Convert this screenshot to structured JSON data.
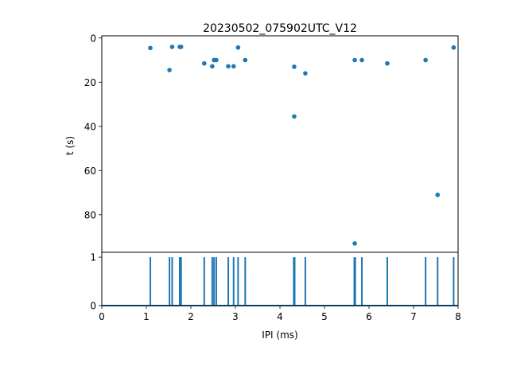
{
  "chart_data": [
    {
      "type": "scatter",
      "title": "20230502_075902UTC_V12",
      "xlabel": "",
      "ylabel": "t (s)",
      "xlim": [
        0,
        8
      ],
      "ylim": [
        97,
        -1
      ],
      "y_inverted": true,
      "y_ticks": [
        0,
        20,
        40,
        60,
        80
      ],
      "y_tick_labels": [
        "0",
        "20",
        "40",
        "60",
        "80"
      ],
      "marker_color": "#1f77b4",
      "points": [
        {
          "x": 1.09,
          "y": 4.5
        },
        {
          "x": 1.52,
          "y": 14.5
        },
        {
          "x": 1.58,
          "y": 4.0
        },
        {
          "x": 1.75,
          "y": 4.0
        },
        {
          "x": 1.78,
          "y": 4.0
        },
        {
          "x": 2.3,
          "y": 11.5
        },
        {
          "x": 2.48,
          "y": 12.8
        },
        {
          "x": 2.52,
          "y": 10.0
        },
        {
          "x": 2.57,
          "y": 10.0
        },
        {
          "x": 2.84,
          "y": 12.8
        },
        {
          "x": 2.96,
          "y": 12.8
        },
        {
          "x": 3.06,
          "y": 4.3
        },
        {
          "x": 3.22,
          "y": 10.0
        },
        {
          "x": 4.32,
          "y": 13.0
        },
        {
          "x": 4.32,
          "y": 35.5
        },
        {
          "x": 4.57,
          "y": 16.0
        },
        {
          "x": 5.68,
          "y": 10.0
        },
        {
          "x": 5.68,
          "y": 93.0
        },
        {
          "x": 5.84,
          "y": 10.0
        },
        {
          "x": 6.41,
          "y": 11.5
        },
        {
          "x": 7.27,
          "y": 10.0
        },
        {
          "x": 7.54,
          "y": 71.0
        },
        {
          "x": 7.9,
          "y": 4.3
        }
      ]
    },
    {
      "type": "line",
      "xlabel": "IPI (ms)",
      "ylabel": "",
      "xlim": [
        0,
        8
      ],
      "ylim": [
        0,
        1.1
      ],
      "x_ticks": [
        0,
        1,
        2,
        3,
        4,
        5,
        6,
        7,
        8
      ],
      "x_tick_labels": [
        "0",
        "1",
        "2",
        "3",
        "4",
        "5",
        "6",
        "7",
        "8"
      ],
      "y_ticks": [
        0,
        1
      ],
      "y_tick_labels": [
        "0",
        "1"
      ],
      "line_color": "#1f77b4",
      "spikes_x": [
        1.09,
        1.52,
        1.58,
        1.75,
        1.78,
        2.3,
        2.48,
        2.52,
        2.57,
        2.84,
        2.96,
        3.06,
        3.22,
        4.31,
        4.33,
        4.57,
        5.67,
        5.69,
        5.84,
        6.41,
        7.27,
        7.54,
        7.9
      ]
    }
  ]
}
